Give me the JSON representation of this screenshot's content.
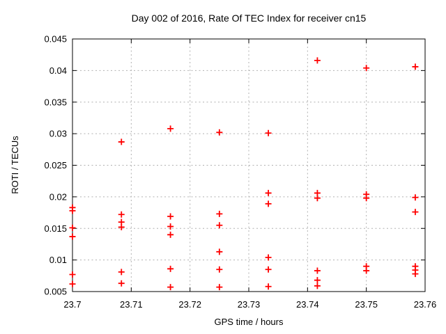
{
  "chart_data": {
    "type": "scatter",
    "title": "Day 002 of 2016, Rate Of TEC Index for receiver cn15",
    "xlabel": "GPS time / hours",
    "ylabel": "ROTI / TECUs",
    "xlim": [
      23.7,
      23.76
    ],
    "ylim": [
      0.005,
      0.045
    ],
    "xticks": [
      23.7,
      23.71,
      23.72,
      23.73,
      23.74,
      23.75,
      23.76
    ],
    "xtick_labels": [
      "23.7",
      "23.71",
      "23.72",
      "23.73",
      "23.74",
      "23.75",
      "23.76"
    ],
    "yticks": [
      0.005,
      0.01,
      0.015,
      0.02,
      0.025,
      0.03,
      0.035,
      0.04,
      0.045
    ],
    "ytick_labels": [
      "0.005",
      "0.01",
      "0.015",
      "0.02",
      "0.025",
      "0.03",
      "0.035",
      "0.04",
      "0.045"
    ],
    "grid": true,
    "legend": "none",
    "marker": {
      "shape": "plus",
      "color": "#ff0000"
    },
    "colors": {
      "background": "#ffffff",
      "border": "#000000",
      "gridline": "#b0b0b0",
      "text": "#000000",
      "marker": "#ff0000"
    },
    "points": [
      {
        "x": 23.7,
        "y": 0.0183
      },
      {
        "x": 23.7,
        "y": 0.0178
      },
      {
        "x": 23.7,
        "y": 0.0151
      },
      {
        "x": 23.7,
        "y": 0.0137
      },
      {
        "x": 23.7,
        "y": 0.0077
      },
      {
        "x": 23.7,
        "y": 0.0062
      },
      {
        "x": 23.70833,
        "y": 0.0287
      },
      {
        "x": 23.70833,
        "y": 0.0172
      },
      {
        "x": 23.70833,
        "y": 0.016
      },
      {
        "x": 23.70833,
        "y": 0.0152
      },
      {
        "x": 23.70833,
        "y": 0.0081
      },
      {
        "x": 23.70833,
        "y": 0.0063
      },
      {
        "x": 23.71667,
        "y": 0.0308
      },
      {
        "x": 23.71667,
        "y": 0.0169
      },
      {
        "x": 23.71667,
        "y": 0.0153
      },
      {
        "x": 23.71667,
        "y": 0.014
      },
      {
        "x": 23.71667,
        "y": 0.0086
      },
      {
        "x": 23.71667,
        "y": 0.0057
      },
      {
        "x": 23.725,
        "y": 0.0302
      },
      {
        "x": 23.725,
        "y": 0.0173
      },
      {
        "x": 23.725,
        "y": 0.0155
      },
      {
        "x": 23.725,
        "y": 0.0113
      },
      {
        "x": 23.725,
        "y": 0.0085
      },
      {
        "x": 23.725,
        "y": 0.0057
      },
      {
        "x": 23.73333,
        "y": 0.0301
      },
      {
        "x": 23.73333,
        "y": 0.0206
      },
      {
        "x": 23.73333,
        "y": 0.0189
      },
      {
        "x": 23.73333,
        "y": 0.0104
      },
      {
        "x": 23.73333,
        "y": 0.0085
      },
      {
        "x": 23.73333,
        "y": 0.0058
      },
      {
        "x": 23.74167,
        "y": 0.0416
      },
      {
        "x": 23.74167,
        "y": 0.0206
      },
      {
        "x": 23.74167,
        "y": 0.0198
      },
      {
        "x": 23.74167,
        "y": 0.0083
      },
      {
        "x": 23.74167,
        "y": 0.0068
      },
      {
        "x": 23.74167,
        "y": 0.0059
      },
      {
        "x": 23.75,
        "y": 0.0404
      },
      {
        "x": 23.75,
        "y": 0.0204
      },
      {
        "x": 23.75,
        "y": 0.0198
      },
      {
        "x": 23.75,
        "y": 0.009
      },
      {
        "x": 23.75,
        "y": 0.0083
      },
      {
        "x": 23.75833,
        "y": 0.0406
      },
      {
        "x": 23.75833,
        "y": 0.0199
      },
      {
        "x": 23.75833,
        "y": 0.0176
      },
      {
        "x": 23.75833,
        "y": 0.009
      },
      {
        "x": 23.75833,
        "y": 0.0084
      },
      {
        "x": 23.75833,
        "y": 0.0078
      }
    ]
  }
}
